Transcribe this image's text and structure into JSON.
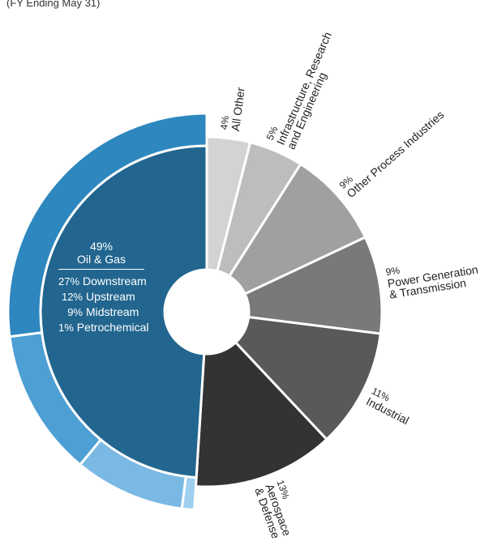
{
  "subtitle": "(FY Ending May 31)",
  "chart_data": {
    "type": "donut",
    "categories": [
      "All Other",
      "Infrastructure, Research\nand Engineering",
      "Other Process Industries",
      "Power Generation\n& Transmission",
      "Industrial",
      "Aerospace\n& Defense",
      "Oil & Gas"
    ],
    "values": [
      4,
      5,
      9,
      9,
      11,
      13,
      49
    ],
    "value_labels": [
      "4%",
      "5%",
      "9%",
      "9%",
      "11%",
      "13%",
      "49%"
    ],
    "colors": [
      "#d2d3d5",
      "#bcbdbf",
      "#9fa0a2",
      "#78797b",
      "#58595b",
      "#333333",
      "#22668f"
    ],
    "breakdown": {
      "categories": [
        "Downstream",
        "Upstream",
        "Midstream",
        "Petrochemical"
      ],
      "values": [
        27,
        12,
        9,
        1
      ],
      "value_labels": [
        "27%",
        "12%",
        "9%",
        "1%"
      ],
      "colors": [
        "#2e87bf",
        "#4e9fd4",
        "#7ab9e3",
        "#9fd0ef"
      ]
    }
  }
}
